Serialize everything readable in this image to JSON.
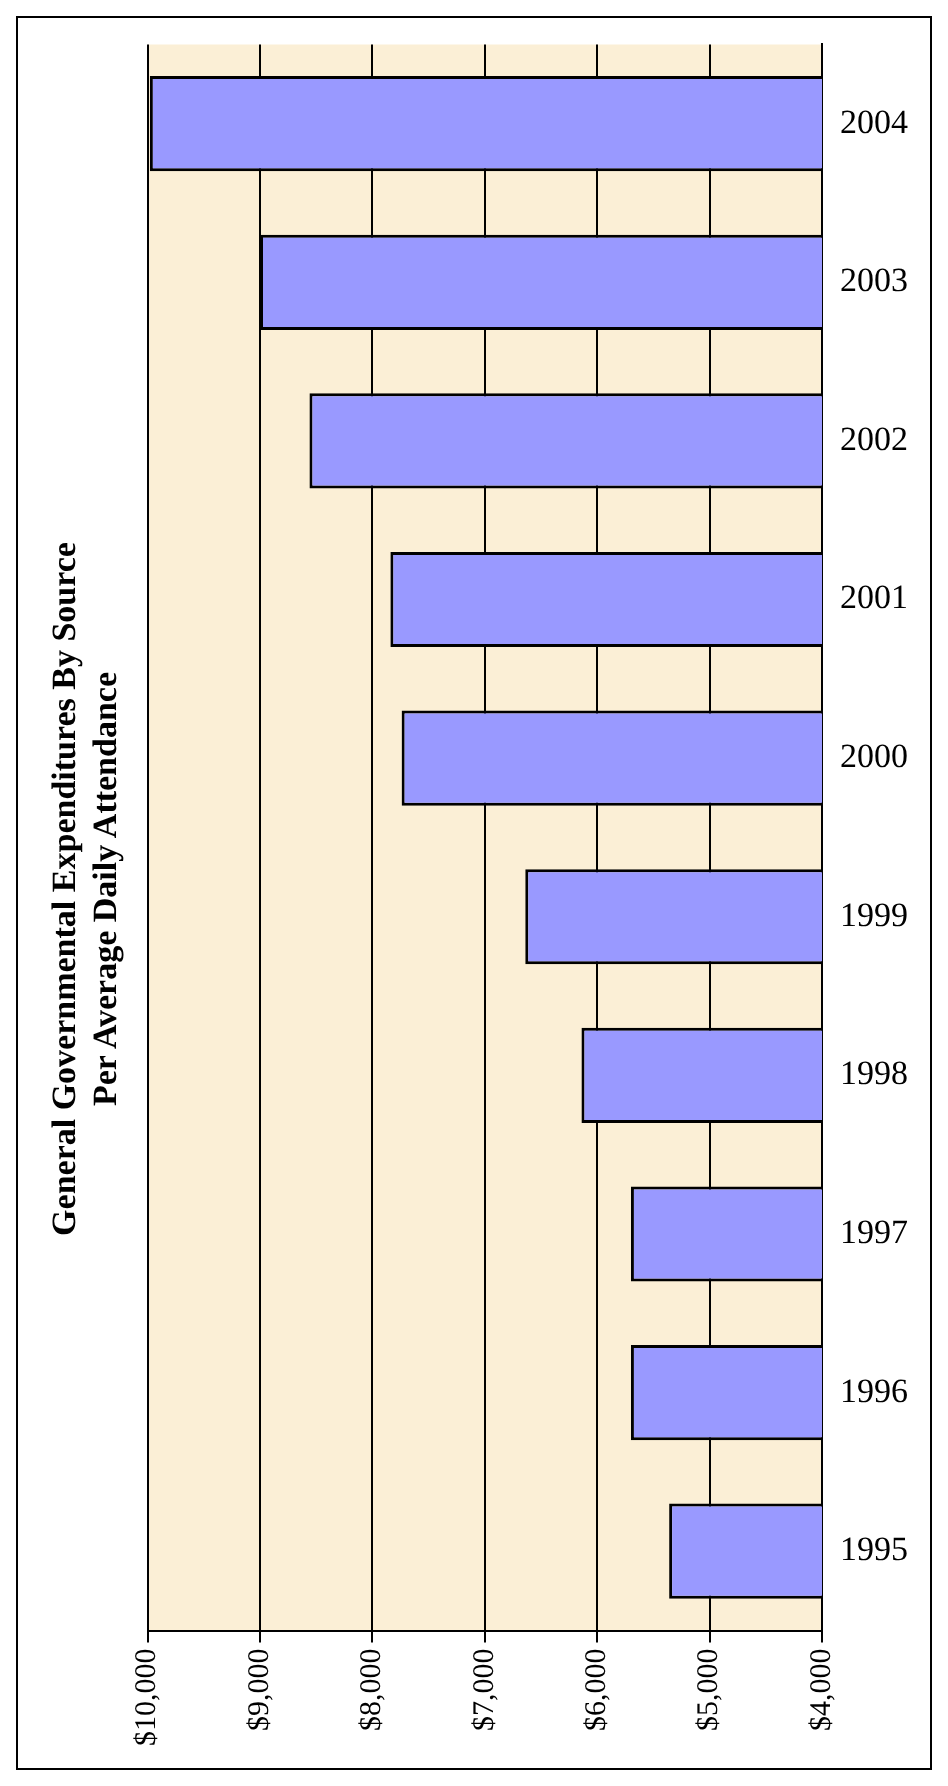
{
  "chart_data": {
    "type": "bar",
    "orientation": "horizontal",
    "title": [
      "General Governmental Expenditures By Source",
      "Per Average Daily Attendance"
    ],
    "categories": [
      "2004",
      "2003",
      "2002",
      "2001",
      "2000",
      "1999",
      "1998",
      "1997",
      "1996",
      "1995"
    ],
    "values": [
      9980,
      9000,
      8560,
      7840,
      7740,
      6640,
      6140,
      5700,
      5700,
      5360
    ],
    "color": "#9999ff",
    "xlim": [
      10000,
      4000
    ],
    "xticks": [
      {
        "value": 10000,
        "label": "$10,000"
      },
      {
        "value": 9000,
        "label": "$9,000"
      },
      {
        "value": 8000,
        "label": "$8,000"
      },
      {
        "value": 7000,
        "label": "$7,000"
      },
      {
        "value": 6000,
        "label": "$6,000"
      },
      {
        "value": 5000,
        "label": "$5,000"
      },
      {
        "value": 4000,
        "label": "$4,000"
      }
    ],
    "grid": "x",
    "legend": false
  }
}
